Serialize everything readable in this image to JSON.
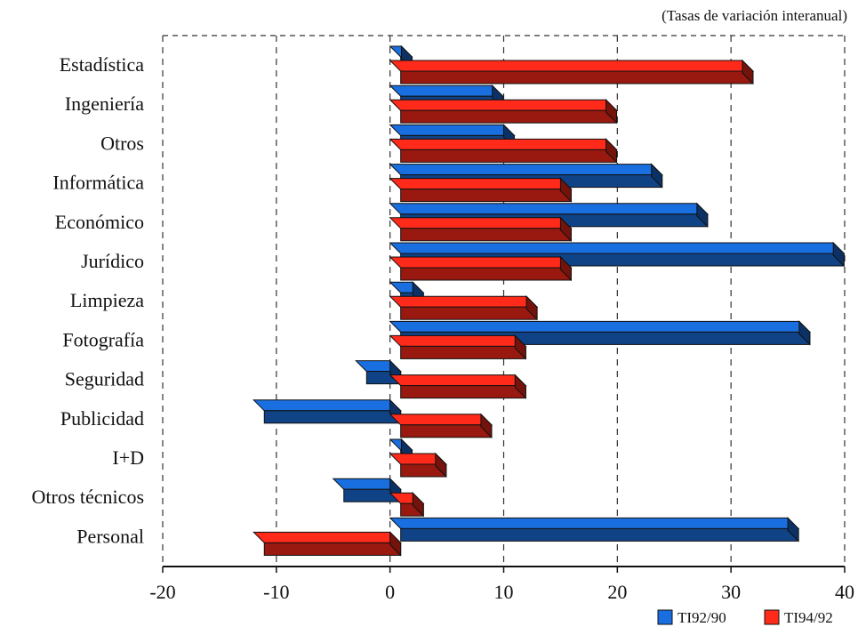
{
  "chart_data": {
    "type": "bar",
    "orientation": "horizontal",
    "subtitle": "(Tasas de variación interanual)",
    "categories": [
      "Estadística",
      "Ingeniería",
      "Otros",
      "Informática",
      "Económico",
      "Jurídico",
      "Limpieza",
      "Fotografía",
      "Seguridad",
      "Publicidad",
      "I+D",
      "Otros técnicos",
      "Personal"
    ],
    "series": [
      {
        "name": "TI92/90",
        "color": "#1a6fe0",
        "values": [
          1,
          9,
          10,
          23,
          27,
          39,
          2,
          36,
          -3,
          -12,
          1,
          -5,
          35
        ]
      },
      {
        "name": "TI94/92",
        "color": "#ff2a1a",
        "values": [
          31,
          19,
          19,
          15,
          15,
          15,
          12,
          11,
          11,
          8,
          4,
          2,
          -12
        ]
      }
    ],
    "xlim": [
      -20,
      40
    ],
    "xticks": [
      "-20",
      "-10",
      "0",
      "10",
      "20",
      "30",
      "40"
    ],
    "grid": "vertical-dashed",
    "legend": "bottom-right"
  }
}
